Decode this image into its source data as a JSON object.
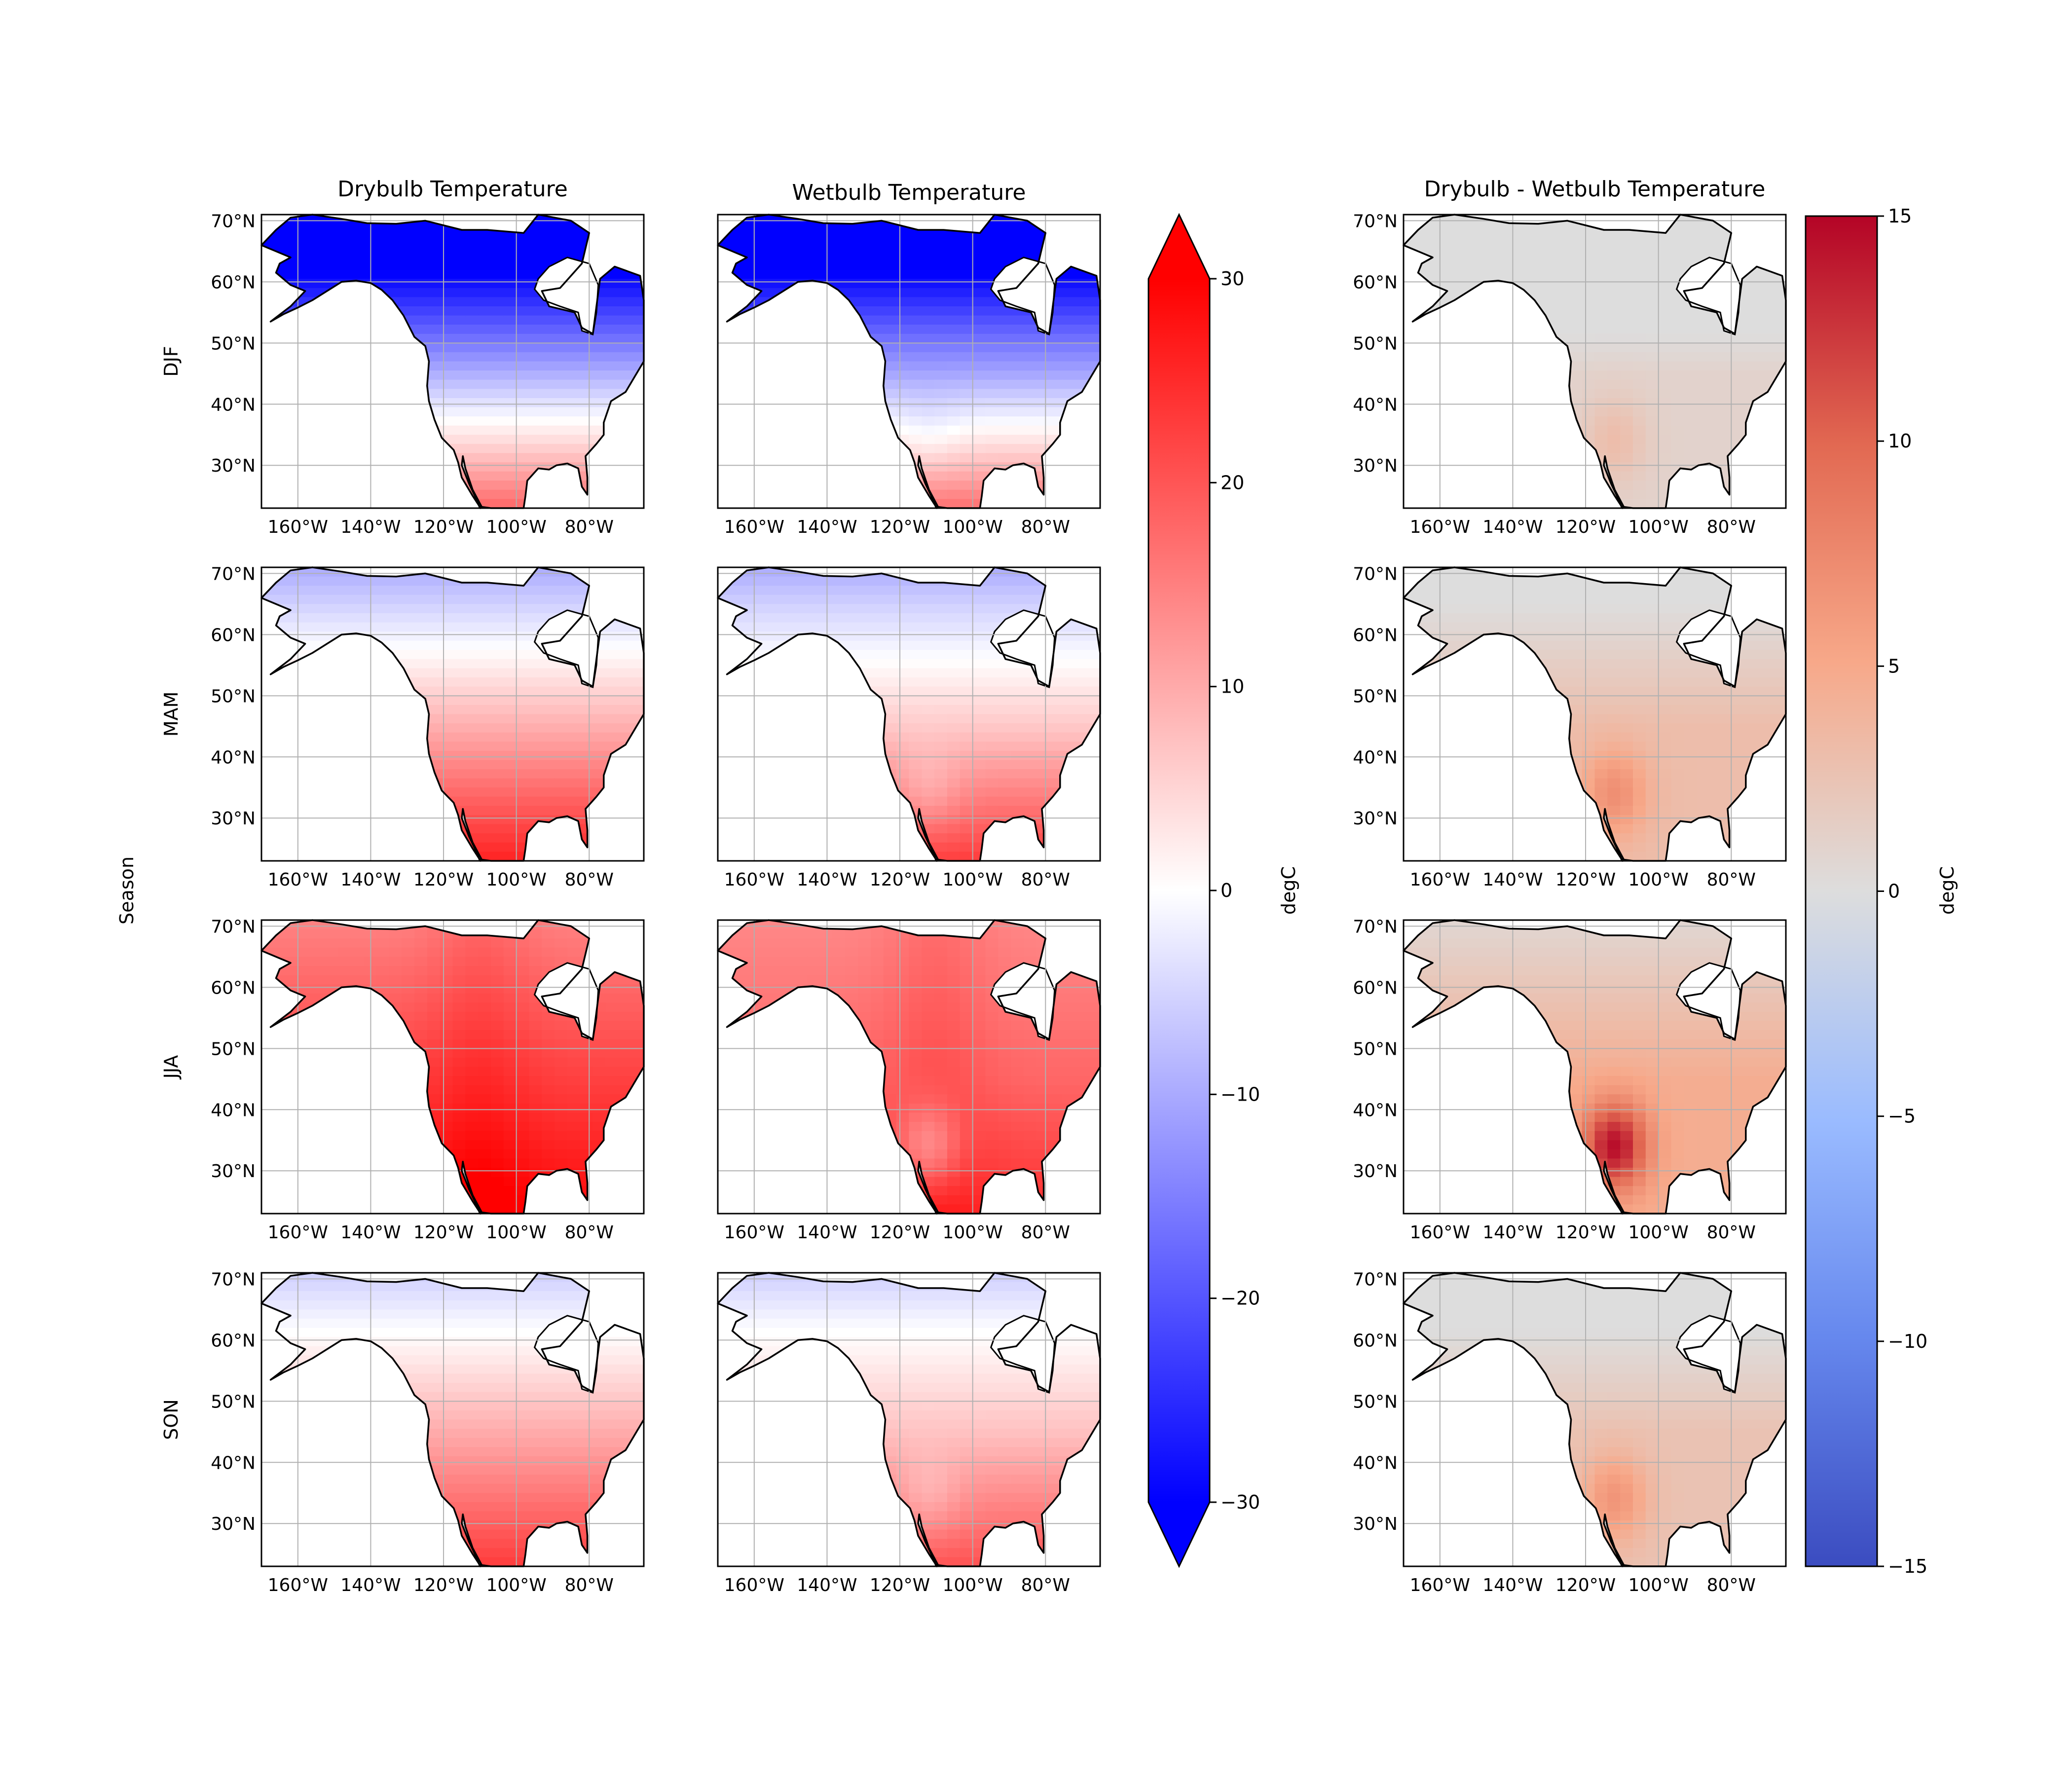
{
  "figure": {
    "columns": [
      {
        "id": "dry",
        "title": "Drybulb Temperature"
      },
      {
        "id": "wet",
        "title": "Wetbulb Temperature"
      },
      {
        "id": "diff",
        "title": "Drybulb - Wetbulb Temperature"
      }
    ],
    "rows": [
      {
        "id": "djf",
        "label": "DJF"
      },
      {
        "id": "mam",
        "label": "MAM"
      },
      {
        "id": "jja",
        "label": "JJA"
      },
      {
        "id": "son",
        "label": "SON"
      }
    ],
    "row_axis_label": "Season",
    "lat_ticks": [
      "70°N",
      "60°N",
      "50°N",
      "40°N",
      "30°N"
    ],
    "lon_ticks": [
      "160°W",
      "140°W",
      "120°W",
      "100°W",
      "80°W"
    ],
    "map_extent": {
      "lon_min": -170,
      "lon_max": -65,
      "lat_min": 23,
      "lat_max": 71
    },
    "colorbar_temp": {
      "label": "degC",
      "cmap": "bwr",
      "min": -30,
      "max": 30,
      "extend": "both",
      "ticks": [
        "30",
        "20",
        "10",
        "0",
        "−10",
        "−20",
        "−30"
      ],
      "tick_values": [
        30,
        20,
        10,
        0,
        -10,
        -20,
        -30
      ],
      "colors": {
        "low": "#0000ff",
        "mid": "#ffffff",
        "high": "#ff0000"
      }
    },
    "colorbar_diff": {
      "label": "degC",
      "cmap": "coolwarm",
      "min": -15,
      "max": 15,
      "ticks": [
        "15",
        "10",
        "5",
        "0",
        "−5",
        "−10",
        "−15"
      ],
      "tick_values": [
        15,
        10,
        5,
        0,
        -5,
        -10,
        -15
      ],
      "colors": {
        "low": "#3b4cc0",
        "mid": "#dddddd",
        "high": "#b40426"
      }
    }
  }
}
